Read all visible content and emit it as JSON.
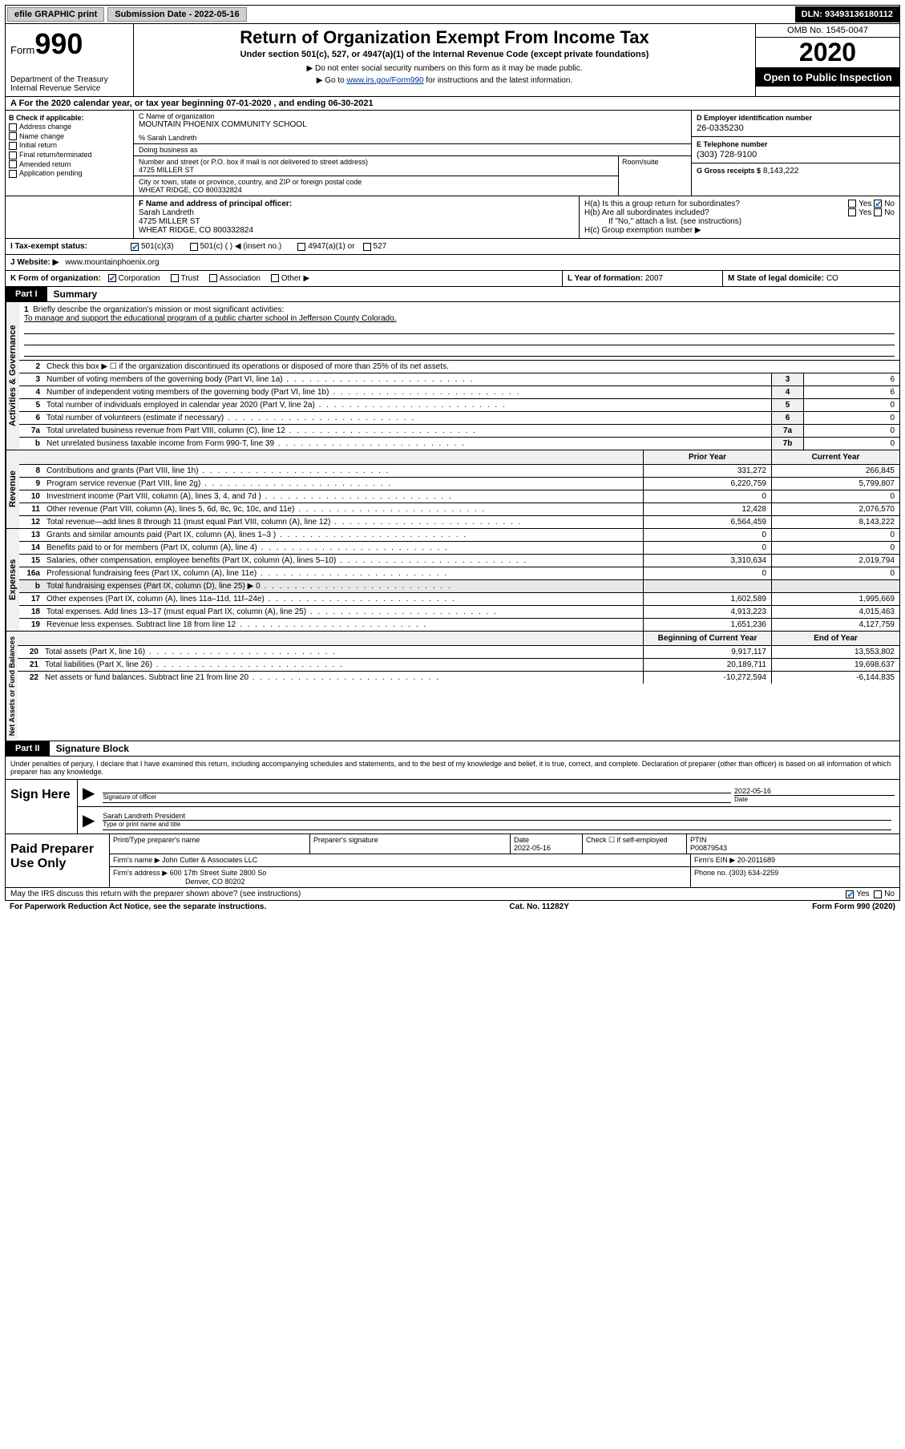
{
  "topbar": {
    "efile": "efile GRAPHIC print",
    "submission_label": "Submission Date - 2022-05-16",
    "dln": "DLN: 93493136180112"
  },
  "header": {
    "form_word": "Form",
    "form_num": "990",
    "dept": "Department of the Treasury",
    "irs": "Internal Revenue Service",
    "title": "Return of Organization Exempt From Income Tax",
    "subtitle": "Under section 501(c), 527, or 4947(a)(1) of the Internal Revenue Code (except private foundations)",
    "note1": "▶ Do not enter social security numbers on this form as it may be made public.",
    "note2_pre": "▶ Go to ",
    "note2_link": "www.irs.gov/Form990",
    "note2_post": " for instructions and the latest information.",
    "omb": "OMB No. 1545-0047",
    "year": "2020",
    "public": "Open to Public Inspection"
  },
  "taxyear": "A For the 2020 calendar year, or tax year beginning 07-01-2020    , and ending 06-30-2021",
  "section_b": {
    "label": "B Check if applicable:",
    "items": [
      "Address change",
      "Name change",
      "Initial return",
      "Final return/terminated",
      "Amended return",
      "Application pending"
    ]
  },
  "section_c": {
    "name_label": "C Name of organization",
    "name": "MOUNTAIN PHOENIX COMMUNITY SCHOOL",
    "care_of": "% Sarah Landreth",
    "dba_label": "Doing business as",
    "addr_label": "Number and street (or P.O. box if mail is not delivered to street address)",
    "addr": "4725 MILLER ST",
    "room_label": "Room/suite",
    "city_label": "City or town, state or province, country, and ZIP or foreign postal code",
    "city": "WHEAT RIDGE, CO  800332824"
  },
  "section_d": {
    "ein_label": "D Employer identification number",
    "ein": "26-0335230",
    "phone_label": "E Telephone number",
    "phone": "(303) 728-9100",
    "gross_label": "G Gross receipts $",
    "gross": "8,143,222"
  },
  "section_f": {
    "label": "F Name and address of principal officer:",
    "name": "Sarah Landreth",
    "addr1": "4725 MILLER ST",
    "addr2": "WHEAT RIDGE, CO  800332824"
  },
  "section_h": {
    "ha": "H(a)  Is this a group return for subordinates?",
    "hb": "H(b)  Are all subordinates included?",
    "hb_note": "If \"No,\" attach a list. (see instructions)",
    "hc": "H(c)  Group exemption number ▶"
  },
  "tax_status": {
    "label": "I    Tax-exempt status:",
    "opts": [
      "501(c)(3)",
      "501(c) (  ) ◀ (insert no.)",
      "4947(a)(1) or",
      "527"
    ]
  },
  "website": {
    "label": "J    Website: ▶",
    "value": "www.mountainphoenix.org"
  },
  "k": {
    "label": "K Form of organization:",
    "opts": [
      "Corporation",
      "Trust",
      "Association",
      "Other ▶"
    ]
  },
  "l": {
    "label": "L Year of formation:",
    "value": "2007"
  },
  "m": {
    "label": "M State of legal domicile:",
    "value": "CO"
  },
  "part1": {
    "tab": "Part I",
    "title": "Summary",
    "mission_label": "Briefly describe the organization's mission or most significant activities:",
    "mission": "To manage and support the educational program of a public charter school in Jefferson County Colorado.",
    "line2": "Check this box ▶ ☐  if the organization discontinued its operations or disposed of more than 25% of its net assets.",
    "lines": [
      {
        "n": "3",
        "t": "Number of voting members of the governing body (Part VI, line 1a)",
        "b": "3",
        "v": "6"
      },
      {
        "n": "4",
        "t": "Number of independent voting members of the governing body (Part VI, line 1b)",
        "b": "4",
        "v": "6"
      },
      {
        "n": "5",
        "t": "Total number of individuals employed in calendar year 2020 (Part V, line 2a)",
        "b": "5",
        "v": "0"
      },
      {
        "n": "6",
        "t": "Total number of volunteers (estimate if necessary)",
        "b": "6",
        "v": "0"
      },
      {
        "n": "7a",
        "t": "Total unrelated business revenue from Part VIII, column (C), line 12",
        "b": "7a",
        "v": "0"
      },
      {
        "n": "b",
        "t": "Net unrelated business taxable income from Form 990-T, line 39",
        "b": "7b",
        "v": "0"
      }
    ]
  },
  "revenue": {
    "label": "Revenue",
    "head_py": "Prior Year",
    "head_cy": "Current Year",
    "lines": [
      {
        "n": "8",
        "t": "Contributions and grants (Part VIII, line 1h)",
        "py": "331,272",
        "cy": "266,845"
      },
      {
        "n": "9",
        "t": "Program service revenue (Part VIII, line 2g)",
        "py": "6,220,759",
        "cy": "5,799,807"
      },
      {
        "n": "10",
        "t": "Investment income (Part VIII, column (A), lines 3, 4, and 7d )",
        "py": "0",
        "cy": "0"
      },
      {
        "n": "11",
        "t": "Other revenue (Part VIII, column (A), lines 5, 6d, 8c, 9c, 10c, and 11e)",
        "py": "12,428",
        "cy": "2,076,570"
      },
      {
        "n": "12",
        "t": "Total revenue—add lines 8 through 11 (must equal Part VIII, column (A), line 12)",
        "py": "6,564,459",
        "cy": "8,143,222"
      }
    ]
  },
  "expenses": {
    "label": "Expenses",
    "lines": [
      {
        "n": "13",
        "t": "Grants and similar amounts paid (Part IX, column (A), lines 1–3 )",
        "py": "0",
        "cy": "0"
      },
      {
        "n": "14",
        "t": "Benefits paid to or for members (Part IX, column (A), line 4)",
        "py": "0",
        "cy": "0"
      },
      {
        "n": "15",
        "t": "Salaries, other compensation, employee benefits (Part IX, column (A), lines 5–10)",
        "py": "3,310,634",
        "cy": "2,019,794"
      },
      {
        "n": "16a",
        "t": "Professional fundraising fees (Part IX, column (A), line 11e)",
        "py": "0",
        "cy": "0"
      },
      {
        "n": "b",
        "t": "Total fundraising expenses (Part IX, column (D), line 25) ▶ 0",
        "py": "",
        "cy": ""
      },
      {
        "n": "17",
        "t": "Other expenses (Part IX, column (A), lines 11a–11d, 11f–24e)",
        "py": "1,602,589",
        "cy": "1,995,669"
      },
      {
        "n": "18",
        "t": "Total expenses. Add lines 13–17 (must equal Part IX, column (A), line 25)",
        "py": "4,913,223",
        "cy": "4,015,463"
      },
      {
        "n": "19",
        "t": "Revenue less expenses. Subtract line 18 from line 12",
        "py": "1,651,236",
        "cy": "4,127,759"
      }
    ]
  },
  "netassets": {
    "label": "Net Assets or Fund Balances",
    "head_py": "Beginning of Current Year",
    "head_cy": "End of Year",
    "lines": [
      {
        "n": "20",
        "t": "Total assets (Part X, line 16)",
        "py": "9,917,117",
        "cy": "13,553,802"
      },
      {
        "n": "21",
        "t": "Total liabilities (Part X, line 26)",
        "py": "20,189,711",
        "cy": "19,698,637"
      },
      {
        "n": "22",
        "t": "Net assets or fund balances. Subtract line 21 from line 20",
        "py": "-10,272,594",
        "cy": "-6,144,835"
      }
    ]
  },
  "part2": {
    "tab": "Part II",
    "title": "Signature Block",
    "declaration": "Under penalties of perjury, I declare that I have examined this return, including accompanying schedules and statements, and to the best of my knowledge and belief, it is true, correct, and complete. Declaration of preparer (other than officer) is based on all information of which preparer has any knowledge."
  },
  "sign": {
    "label": "Sign Here",
    "sig_label": "Signature of officer",
    "date": "2022-05-16",
    "date_label": "Date",
    "name": "Sarah Landreth President",
    "name_label": "Type or print name and title"
  },
  "preparer": {
    "label": "Paid Preparer Use Only",
    "name_label": "Print/Type preparer's name",
    "sig_label": "Preparer's signature",
    "date_label": "Date",
    "date": "2022-05-16",
    "check_label": "Check ☐ if self-employed",
    "ptin_label": "PTIN",
    "ptin": "P00879543",
    "firm_name_label": "Firm's name    ▶",
    "firm_name": "John Cutler & Associates LLC",
    "firm_ein_label": "Firm's EIN ▶",
    "firm_ein": "20-2011689",
    "firm_addr_label": "Firm's address ▶",
    "firm_addr1": "600 17th Street Suite 2800 So",
    "firm_addr2": "Denver, CO  80202",
    "phone_label": "Phone no.",
    "phone": "(303) 634-2259"
  },
  "footer": {
    "discuss": "May the IRS discuss this return with the preparer shown above? (see instructions)",
    "yes": "Yes",
    "no": "No",
    "paperwork": "For Paperwork Reduction Act Notice, see the separate instructions.",
    "catno": "Cat. No. 11282Y",
    "formno": "Form 990 (2020)"
  }
}
